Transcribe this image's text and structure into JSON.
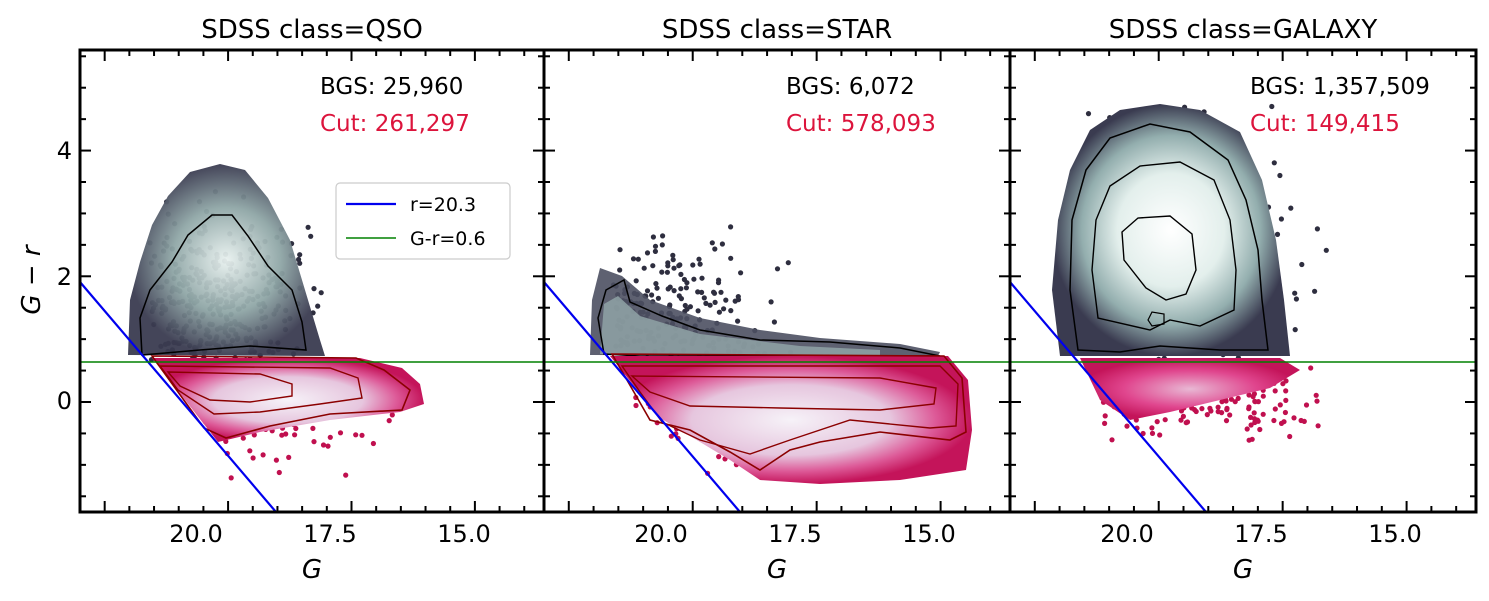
{
  "colors": {
    "boundary_line": "#0000ee",
    "color_cut_line": "#008000",
    "cut_text": "#dc143c",
    "bgs_density_dark": "#2e2e3f",
    "bgs_density_light": "#e8f1ef",
    "cut_density_dark": "#c0104f",
    "cut_density_light": "#f4eef6",
    "bgs_contour": "#000000",
    "cut_contour": "#8b0000"
  },
  "chart_data": [
    {
      "type": "scatter",
      "title": "SDSS class=QSO",
      "xlabel": "G",
      "ylabel": "G − r",
      "xlim": [
        23.0,
        13.6
      ],
      "ylim": [
        -1.75,
        5.6
      ],
      "xticks": [
        "20.0",
        "17.5",
        "15.0"
      ],
      "yticks": [
        "0",
        "2",
        "4"
      ],
      "counts": {
        "bgs": "BGS: 25,960",
        "cut": "Cut: 261,297"
      },
      "legend": {
        "position": "center-right",
        "entries": [
          "r=20.3",
          "G-r=0.6"
        ]
      },
      "lines": {
        "r_cut": 20.3,
        "color_cut": 0.6
      },
      "bgs_region": {
        "g_min": 16.7,
        "g_max": 21.6,
        "gr_min": 0.6,
        "gr_max": 4.3,
        "peak_g": 20.2,
        "peak_gr": 1.6
      },
      "cut_region": {
        "g_min": 14.2,
        "g_max": 20.5,
        "gr_min": -1.5,
        "gr_max": 0.6,
        "peak_g": 19.5,
        "peak_gr": 0.2
      }
    },
    {
      "type": "scatter",
      "title": "SDSS class=STAR",
      "xlabel": "G",
      "ylabel": "",
      "xlim": [
        23.0,
        13.6
      ],
      "ylim": [
        -1.75,
        5.6
      ],
      "xticks": [
        "20.0",
        "17.5",
        "15.0"
      ],
      "yticks": [
        "0",
        "2",
        "4"
      ],
      "counts": {
        "bgs": "BGS: 6,072",
        "cut": "Cut: 578,093"
      },
      "lines": {
        "r_cut": 20.3,
        "color_cut": 0.6
      },
      "bgs_region": {
        "g_min": 14.6,
        "g_max": 21.6,
        "gr_min": 0.6,
        "gr_max": 4.7,
        "peak_g": 21.0,
        "peak_gr": 1.1
      },
      "cut_region": {
        "g_min": 14.2,
        "g_max": 21.2,
        "gr_min": -1.6,
        "gr_max": 0.6,
        "peak_g": 18.5,
        "peak_gr": 0.2
      }
    },
    {
      "type": "scatter",
      "title": "SDSS class=GALAXY",
      "xlabel": "G",
      "ylabel": "",
      "xlim": [
        23.0,
        13.6
      ],
      "ylim": [
        -1.75,
        5.6
      ],
      "xticks": [
        "20.0",
        "17.5",
        "15.0"
      ],
      "yticks": [
        "0",
        "2",
        "4"
      ],
      "counts": {
        "bgs": "BGS: 1,357,509",
        "cut": "Cut: 149,415"
      },
      "lines": {
        "r_cut": 20.3,
        "color_cut": 0.6
      },
      "bgs_region": {
        "g_min": 15.7,
        "g_max": 21.5,
        "gr_min": 0.6,
        "gr_max": 5.4,
        "peak_g": 19.6,
        "peak_gr": 2.5
      },
      "cut_region": {
        "g_min": 14.4,
        "g_max": 21.2,
        "gr_min": -1.0,
        "gr_max": 0.6,
        "peak_g": 19.8,
        "peak_gr": 0.3
      }
    }
  ]
}
